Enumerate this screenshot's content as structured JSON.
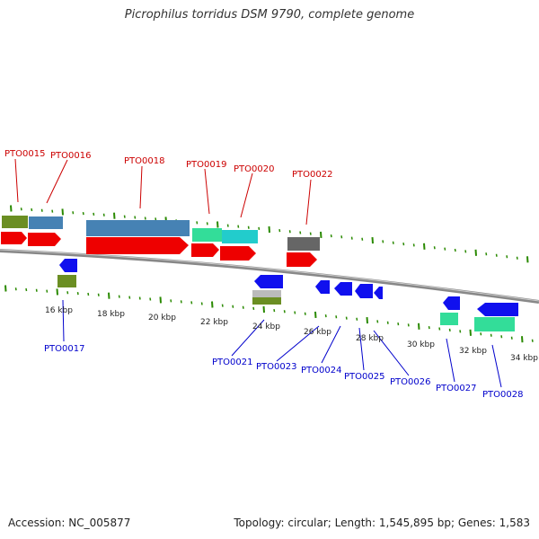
{
  "title": "Picrophilus torridus DSM 9790, complete genome",
  "footer": {
    "accession": "Accession: NC_005877",
    "summary": "Topology: circular; Length: 1,545,895 bp; Genes: 1,583"
  },
  "colors": {
    "label_top": "#cc0000",
    "label_bottom": "#0000cc",
    "tick": "#2a8a00",
    "axis": "#888888"
  },
  "kbp_labels": [
    "16 kbp",
    "18 kbp",
    "20 kbp",
    "22 kbp",
    "24 kbp",
    "26 kbp",
    "28 kbp",
    "30 kbp",
    "32 kbp",
    "34 kbp"
  ],
  "top_genes": [
    "PTO0015",
    "PTO0016",
    "PTO0018",
    "PTO0019",
    "PTO0020",
    "PTO0022"
  ],
  "bottom_genes": [
    "PTO0017",
    "PTO0021",
    "PTO0023",
    "PTO0024",
    "PTO0025",
    "PTO0026",
    "PTO0027",
    "PTO0028"
  ]
}
